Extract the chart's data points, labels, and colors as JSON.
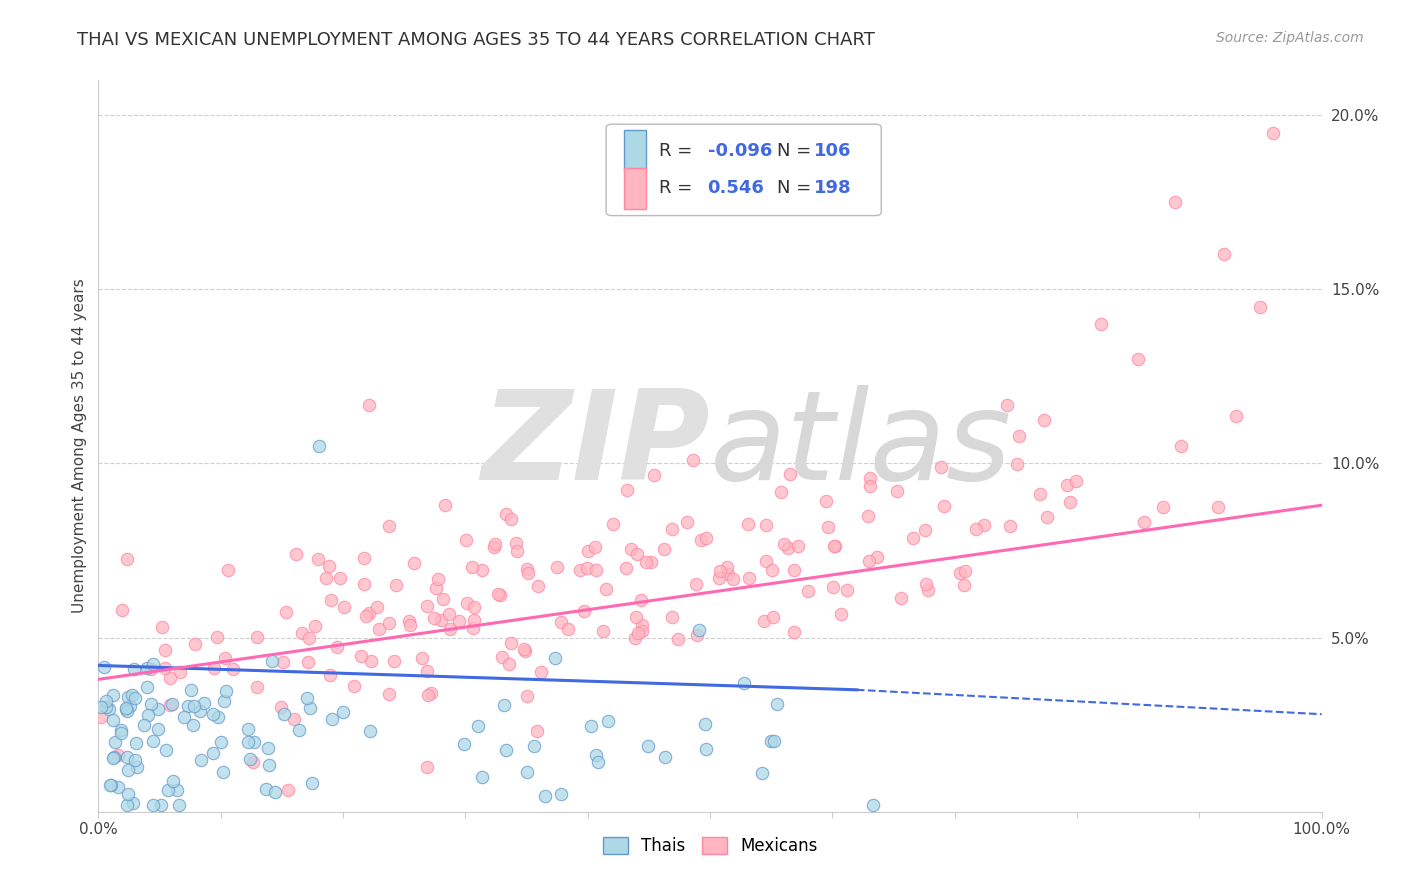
{
  "title": "THAI VS MEXICAN UNEMPLOYMENT AMONG AGES 35 TO 44 YEARS CORRELATION CHART",
  "source": "Source: ZipAtlas.com",
  "ylabel": "Unemployment Among Ages 35 to 44 years",
  "xlim": [
    0,
    1.0
  ],
  "ylim": [
    0,
    0.21
  ],
  "ytick_positions": [
    0.05,
    0.1,
    0.15,
    0.2
  ],
  "yticklabels": [
    "5.0%",
    "10.0%",
    "15.0%",
    "20.0%"
  ],
  "thai_color": "#ADD8E6",
  "thai_edge_color": "#6699CC",
  "mexican_color": "#FFB6C1",
  "mexican_edge_color": "#FF85A0",
  "thai_line_color": "#4169E1",
  "mexican_line_color": "#FF69B4",
  "thai_R": -0.096,
  "thai_N": 106,
  "mexican_R": 0.546,
  "mexican_N": 198,
  "background_color": "#ffffff",
  "watermark_zip": "ZIP",
  "watermark_atlas": "atlas",
  "watermark_color": "#e0e0e0",
  "grid_color": "#d0d0d0",
  "title_fontsize": 13,
  "r_color": "#4169E1",
  "n_color": "#4169E1",
  "legend_label_color": "#333333",
  "thai_line_solid_end": 0.62,
  "thai_line_start_y": 0.042,
  "thai_line_end_y": 0.035,
  "thai_line_dash_end_y": 0.028,
  "mex_line_start_y": 0.038,
  "mex_line_end_y": 0.088
}
